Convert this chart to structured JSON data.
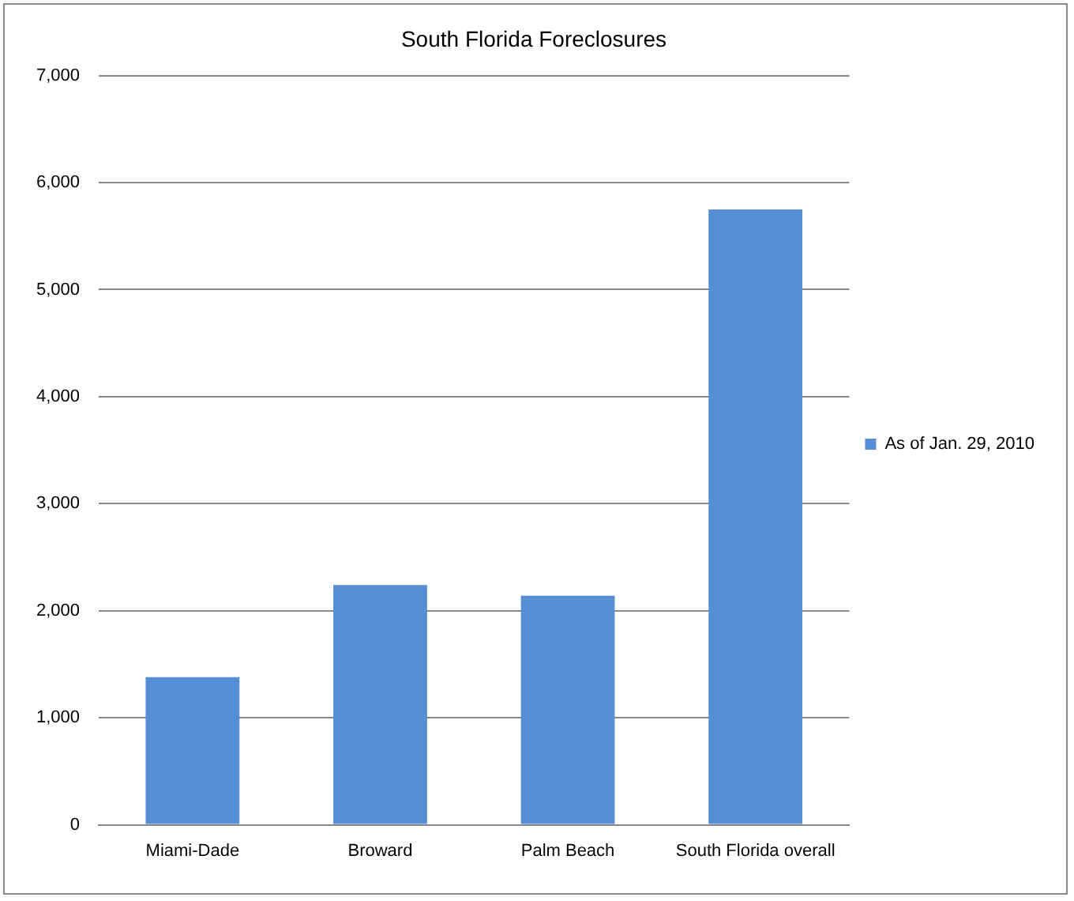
{
  "chart_data": {
    "type": "bar",
    "title": "South Florida Foreclosures",
    "categories": [
      "Miami-Dade",
      "Broward",
      "Palm Beach",
      "South Florida overall"
    ],
    "series": [
      {
        "name": "As of Jan. 29, 2010",
        "color": "#558ed5",
        "values": [
          1380,
          2240,
          2140,
          5750
        ]
      }
    ],
    "ylim": [
      0,
      7000
    ],
    "yticks": [
      0,
      {
        "value": 1000,
        "label": "1,000"
      },
      {
        "value": 2000,
        "label": "2,000"
      },
      {
        "value": 3000,
        "label": "3,000"
      },
      {
        "value": 4000,
        "label": "4,000"
      },
      {
        "value": 5000,
        "label": "5,000"
      },
      {
        "value": 6000,
        "label": "6,000"
      },
      {
        "value": 7000,
        "label": "7,000"
      }
    ],
    "grid": "y",
    "legend": "right"
  }
}
